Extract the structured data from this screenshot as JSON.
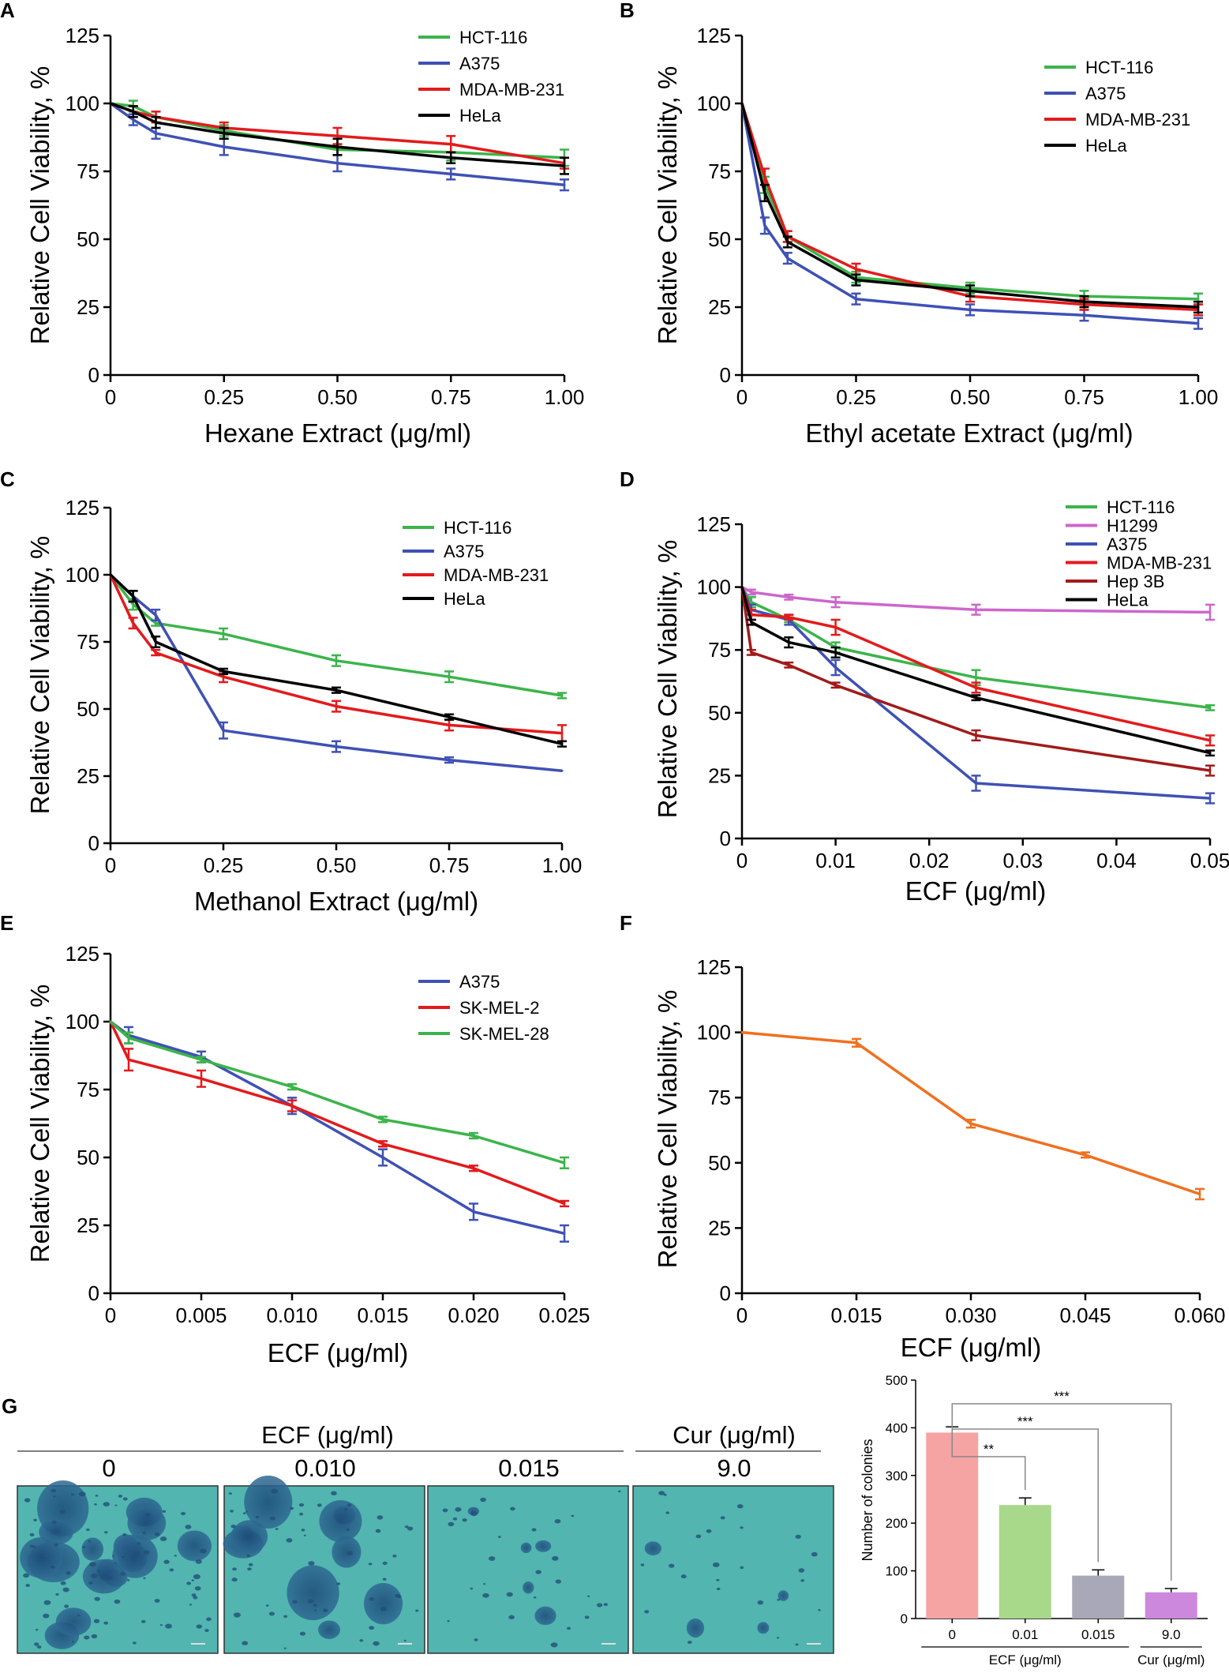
{
  "figure": {
    "panel_g": {
      "letter": "G",
      "ecf_header": "ECF (μg/ml)",
      "cur_header": "Cur (μg/ml)",
      "image_labels": [
        "0",
        "0.010",
        "0.015",
        "9.0"
      ],
      "image_description_colors": {
        "background": "#4fb3b3",
        "colony": "#1f4f7a"
      }
    }
  },
  "chart_data": [
    {
      "panel": "A",
      "type": "line",
      "xlabel": "Hexane Extract (μg/ml)",
      "ylabel": "Relative Cell Viability, %",
      "xlim": [
        0,
        1.0
      ],
      "ylim": [
        0,
        125
      ],
      "xticks": [
        0,
        0.25,
        0.5,
        0.75,
        1.0
      ],
      "xtick_labels": [
        "0",
        "0.25",
        "0.50",
        "0.75",
        "1.00"
      ],
      "yticks": [
        0,
        25,
        50,
        75,
        100,
        125
      ],
      "legend_position": "top-right",
      "x": [
        0,
        0.05,
        0.1,
        0.25,
        0.5,
        0.75,
        1.0
      ],
      "series": [
        {
          "name": "HCT-116",
          "color": "#3cb44b",
          "values": [
            100,
            99,
            95,
            90,
            83,
            82,
            80
          ],
          "err": [
            0,
            2,
            2,
            2,
            2,
            3,
            3
          ]
        },
        {
          "name": "A375",
          "color": "#3f51b5",
          "values": [
            100,
            94,
            89,
            84,
            78,
            74,
            70
          ],
          "err": [
            0,
            2,
            2,
            3,
            3,
            2,
            2
          ]
        },
        {
          "name": "MDA-MB-231",
          "color": "#e31a1c",
          "values": [
            100,
            97,
            95,
            91,
            88,
            85,
            78
          ],
          "err": [
            0,
            2,
            2,
            2,
            3,
            3,
            2
          ]
        },
        {
          "name": "HeLa",
          "color": "#000000",
          "values": [
            100,
            97,
            93,
            89,
            84,
            80,
            77
          ],
          "err": [
            0,
            2,
            2,
            2,
            3,
            2,
            3
          ]
        }
      ]
    },
    {
      "panel": "B",
      "type": "line",
      "xlabel": "Ethyl acetate Extract (μg/ml)",
      "ylabel": "Relative Cell Viability, %",
      "xlim": [
        0,
        1.0
      ],
      "ylim": [
        0,
        125
      ],
      "xticks": [
        0,
        0.25,
        0.5,
        0.75,
        1.0
      ],
      "xtick_labels": [
        "0",
        "0.25",
        "0.50",
        "0.75",
        "1.00"
      ],
      "yticks": [
        0,
        25,
        50,
        75,
        100,
        125
      ],
      "legend_position": "top-right",
      "x": [
        0,
        0.05,
        0.1,
        0.25,
        0.5,
        0.75,
        1.0
      ],
      "series": [
        {
          "name": "HCT-116",
          "color": "#3cb44b",
          "values": [
            100,
            70,
            51,
            36,
            32,
            29,
            28
          ],
          "err": [
            0,
            3,
            2,
            2,
            2,
            2,
            2
          ]
        },
        {
          "name": "A375",
          "color": "#3f51b5",
          "values": [
            100,
            55,
            43,
            28,
            24,
            22,
            19
          ],
          "err": [
            0,
            3,
            2,
            2,
            2,
            2,
            2
          ]
        },
        {
          "name": "MDA-MB-231",
          "color": "#e31a1c",
          "values": [
            100,
            73,
            51,
            39,
            29,
            26,
            24
          ],
          "err": [
            0,
            3,
            2,
            2,
            2,
            2,
            2
          ]
        },
        {
          "name": "HeLa",
          "color": "#000000",
          "values": [
            100,
            67,
            49,
            35,
            31,
            27,
            25
          ],
          "err": [
            0,
            3,
            2,
            2,
            2,
            2,
            2
          ]
        }
      ]
    },
    {
      "panel": "C",
      "type": "line",
      "xlabel": "Methanol Extract (μg/ml)",
      "ylabel": "Relative Cell Viability, %",
      "xlim": [
        0,
        1.0
      ],
      "ylim": [
        0,
        125
      ],
      "xticks": [
        0,
        0.25,
        0.5,
        0.75,
        1.0
      ],
      "xtick_labels": [
        "0",
        "0.25",
        "0.50",
        "0.75",
        "1.00"
      ],
      "yticks": [
        0,
        25,
        50,
        75,
        100,
        125
      ],
      "legend_position": "top-right",
      "x": [
        0,
        0.05,
        0.1,
        0.25,
        0.5,
        0.75,
        1.0
      ],
      "series": [
        {
          "name": "HCT-116",
          "color": "#3cb44b",
          "values": [
            100,
            89,
            82,
            78,
            68,
            62,
            55
          ],
          "err": [
            0,
            2,
            1,
            2,
            2,
            2,
            1
          ]
        },
        {
          "name": "A375",
          "color": "#3f51b5",
          "values": [
            100,
            92,
            85,
            42,
            36,
            31,
            27
          ],
          "err": [
            0,
            2,
            2,
            3,
            2,
            1,
            0
          ]
        },
        {
          "name": "MDA-MB-231",
          "color": "#e31a1c",
          "values": [
            100,
            82,
            71,
            62,
            51,
            44,
            41
          ],
          "err": [
            0,
            2,
            1,
            2,
            2,
            2,
            3
          ]
        },
        {
          "name": "HeLa",
          "color": "#000000",
          "values": [
            100,
            92,
            75,
            64,
            57,
            47,
            37
          ],
          "err": [
            0,
            2,
            2,
            1,
            1,
            1,
            1
          ]
        }
      ]
    },
    {
      "panel": "D",
      "type": "line",
      "xlabel": "ECF (μg/ml)",
      "ylabel": "Relative Cell Viability, %",
      "xlim": [
        0,
        0.05
      ],
      "ylim": [
        0,
        125
      ],
      "xticks": [
        0,
        0.01,
        0.02,
        0.03,
        0.04,
        0.05
      ],
      "xtick_labels": [
        "0",
        "0.01",
        "0.02",
        "0.03",
        "0.04",
        "0.05"
      ],
      "yticks": [
        0,
        25,
        50,
        75,
        100,
        125
      ],
      "legend_position": "top-right",
      "x": [
        0,
        0.001,
        0.005,
        0.01,
        0.025,
        0.05
      ],
      "series": [
        {
          "name": "HCT-116",
          "color": "#3cb44b",
          "values": [
            100,
            94,
            87,
            76,
            64,
            52
          ],
          "err": [
            0,
            2,
            1,
            2,
            3,
            1
          ]
        },
        {
          "name": "H1299",
          "color": "#cc66cc",
          "values": [
            100,
            98,
            96,
            94,
            91,
            90
          ],
          "err": [
            0,
            1,
            1,
            2,
            2,
            3
          ]
        },
        {
          "name": "A375",
          "color": "#3f51b5",
          "values": [
            100,
            91,
            87,
            68,
            22,
            16
          ],
          "err": [
            0,
            2,
            2,
            3,
            3,
            2
          ]
        },
        {
          "name": "MDA-MB-231",
          "color": "#e31a1c",
          "values": [
            100,
            89,
            88,
            84,
            60,
            39
          ],
          "err": [
            0,
            2,
            1,
            3,
            2,
            2
          ]
        },
        {
          "name": "Hep 3B",
          "color": "#a11b1b",
          "values": [
            100,
            74,
            69,
            61,
            41,
            27
          ],
          "err": [
            0,
            1,
            1,
            1,
            2,
            2
          ]
        },
        {
          "name": "HeLa",
          "color": "#000000",
          "values": [
            100,
            86,
            78,
            74,
            56,
            34
          ],
          "err": [
            0,
            1,
            2,
            2,
            1,
            1
          ]
        }
      ]
    },
    {
      "panel": "E",
      "type": "line",
      "xlabel": "ECF (μg/ml)",
      "ylabel": "Relative Cell Viability, %",
      "xlim": [
        0,
        0.025
      ],
      "ylim": [
        0,
        125
      ],
      "xticks": [
        0,
        0.005,
        0.01,
        0.015,
        0.02,
        0.025
      ],
      "xtick_labels": [
        "0",
        "0.005",
        "0.010",
        "0.015",
        "0.020",
        "0.025"
      ],
      "yticks": [
        0,
        25,
        50,
        75,
        100,
        125
      ],
      "legend_position": "top-right",
      "x": [
        0,
        0.001,
        0.005,
        0.01,
        0.015,
        0.02,
        0.025
      ],
      "series": [
        {
          "name": "A375",
          "color": "#3f51b5",
          "values": [
            100,
            95,
            87,
            69,
            50,
            30,
            22
          ],
          "err": [
            0,
            3,
            2,
            3,
            3,
            3,
            3
          ]
        },
        {
          "name": "SK-MEL-2",
          "color": "#e31a1c",
          "values": [
            100,
            86,
            79,
            69,
            55,
            46,
            33
          ],
          "err": [
            0,
            4,
            3,
            2,
            1,
            1,
            1
          ]
        },
        {
          "name": "SK-MEL-28",
          "color": "#3cb44b",
          "values": [
            100,
            94,
            86,
            76,
            64,
            58,
            48
          ],
          "err": [
            0,
            2,
            1,
            1,
            1,
            1,
            2
          ]
        }
      ]
    },
    {
      "panel": "F",
      "type": "line",
      "xlabel": "ECF (μg/ml)",
      "ylabel": "Relative Cell Viability, %",
      "xlim": [
        0,
        0.06
      ],
      "ylim": [
        0,
        125
      ],
      "xticks": [
        0,
        0.015,
        0.03,
        0.045,
        0.06
      ],
      "xtick_labels": [
        "0",
        "0.015",
        "0.030",
        "0.045",
        "0.060"
      ],
      "yticks": [
        0,
        25,
        50,
        75,
        100,
        125
      ],
      "legend_position": "none",
      "x": [
        0,
        0.015,
        0.03,
        0.045,
        0.06
      ],
      "series": [
        {
          "name": "ECF",
          "color": "#f07020",
          "values": [
            100,
            96,
            65,
            53,
            38
          ],
          "err": [
            0,
            1.5,
            1.5,
            1,
            2
          ]
        }
      ]
    },
    {
      "panel": "G",
      "type": "bar",
      "ylabel": "Number of colonies",
      "ylim": [
        0,
        500
      ],
      "yticks": [
        0,
        100,
        200,
        300,
        400,
        500
      ],
      "categories": [
        "0",
        "0.01",
        "0.015",
        "9.0"
      ],
      "values": [
        390,
        238,
        90,
        55
      ],
      "err": [
        12,
        15,
        12,
        8
      ],
      "colors": [
        "#f5a3a3",
        "#a8d88a",
        "#a8a8b8",
        "#cc88dd"
      ],
      "group_labels": [
        {
          "label": "ECF (μg/ml)",
          "categories": [
            "0",
            "0.01",
            "0.015"
          ]
        },
        {
          "label": "Cur (μg/ml)",
          "categories": [
            "9.0"
          ]
        }
      ],
      "significance": [
        {
          "from": "0",
          "to": "0.01",
          "label": "**"
        },
        {
          "from": "0",
          "to": "0.015",
          "label": "***"
        },
        {
          "from": "0",
          "to": "9.0",
          "label": "***"
        }
      ]
    }
  ]
}
